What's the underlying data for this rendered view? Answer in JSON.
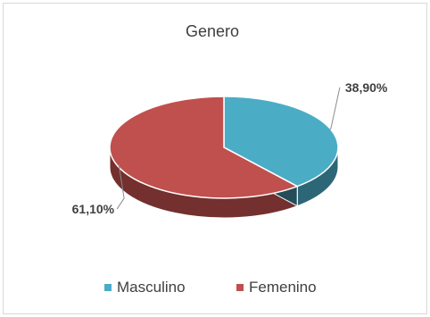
{
  "chart_data": {
    "type": "pie",
    "title": "Genero",
    "style": "3d",
    "categories": [
      "Masculino",
      "Femenino"
    ],
    "values": [
      38.9,
      61.1
    ],
    "data_labels": [
      "38,90%",
      "61,10%"
    ],
    "colors": [
      "#4BACC6",
      "#C0504D"
    ],
    "legend_position": "bottom"
  }
}
